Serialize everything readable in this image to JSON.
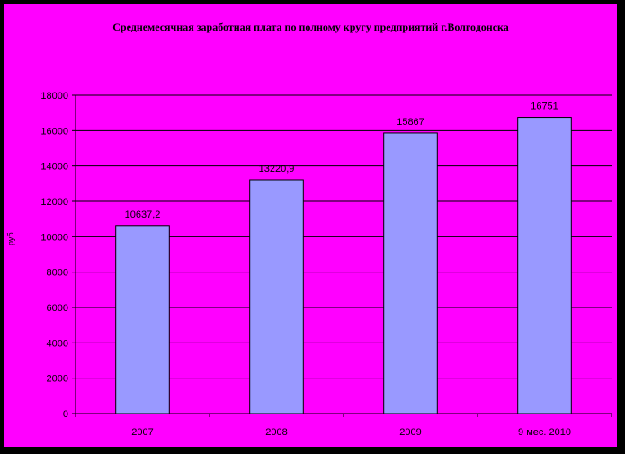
{
  "chart_data": {
    "type": "bar",
    "title": "Среднемесячная заработная плата по полному кругу предприятий г.Волгодонска",
    "ylabel": "руб.",
    "xlabel": "",
    "categories": [
      "2007",
      "2008",
      "2009",
      "9 мес. 2010"
    ],
    "values": [
      10637.2,
      13220.9,
      15867,
      16751
    ],
    "data_labels": [
      "10637,2",
      "13220,9",
      "15867",
      "16751"
    ],
    "ylim": [
      0,
      18000
    ],
    "yticks": [
      0,
      2000,
      4000,
      6000,
      8000,
      10000,
      12000,
      14000,
      16000,
      18000
    ],
    "grid": true,
    "legend": "none"
  },
  "colors": {
    "background": "#FF00FF",
    "bar_fill": "#9999FF",
    "outer_frame": "#000000"
  }
}
